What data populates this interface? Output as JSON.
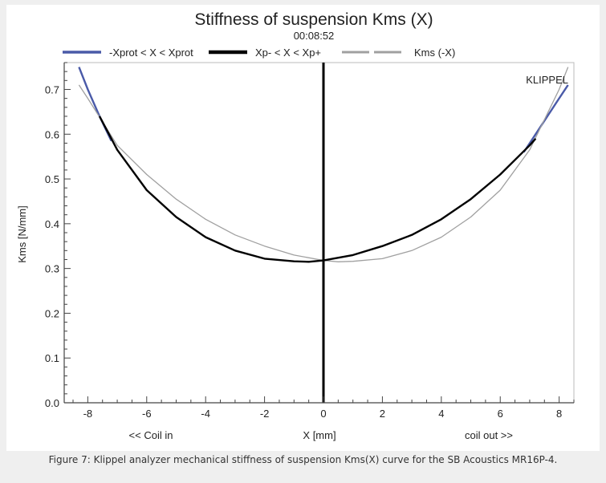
{
  "caption": "Figure 7: Klippel analyzer mechanical stiffness of suspension Kms(X) curve for the SB Acoustics MR16P-4.",
  "colors": {
    "background": "#efefef",
    "panel": "#ffffff",
    "xprot": "#4a5aa8",
    "xp": "#000000",
    "mirror": "#a0a0a0",
    "axis": "#444444"
  },
  "chart_data": {
    "type": "line",
    "title": "Stiffness of suspension Kms (X)",
    "subtitle": "00:08:52",
    "watermark": "KLIPPEL",
    "xlabel": "X [mm]",
    "ylabel": "Kms [N/mm]",
    "x_side_labels": {
      "left": "<< Coil in",
      "right": "coil out >>"
    },
    "xlim": [
      -8.8,
      8.5
    ],
    "ylim": [
      0,
      0.76
    ],
    "xticks": [
      -8,
      -6,
      -4,
      -2,
      0,
      2,
      4,
      6,
      8
    ],
    "yticks": [
      0.0,
      0.1,
      0.2,
      0.3,
      0.4,
      0.5,
      0.6,
      0.7
    ],
    "ytick_labels": [
      "0.0",
      "0.1",
      "0.2",
      "0.3",
      "0.4",
      "0.5",
      "0.6",
      "0.7"
    ],
    "grid": false,
    "legend_position": "top",
    "vertical_line_x": 0,
    "series": [
      {
        "name": "-Xprot < X < Xprot",
        "color": "#4a5aa8",
        "x": [
          -8.3,
          -8.0,
          -7.6,
          -7.2,
          6.8,
          7.2,
          7.6,
          8.0,
          8.3
        ],
        "y": [
          0.75,
          0.7,
          0.64,
          0.585,
          0.56,
          0.6,
          0.64,
          0.68,
          0.71
        ]
      },
      {
        "name": "Xp- < X < Xp+",
        "color": "#000000",
        "x": [
          -7.6,
          -7.0,
          -6.0,
          -5.0,
          -4.0,
          -3.0,
          -2.0,
          -1.0,
          -0.5,
          0.0,
          1.0,
          2.0,
          3.0,
          4.0,
          5.0,
          6.0,
          7.0,
          7.2
        ],
        "y": [
          0.64,
          0.565,
          0.475,
          0.415,
          0.37,
          0.34,
          0.322,
          0.316,
          0.315,
          0.318,
          0.33,
          0.35,
          0.375,
          0.41,
          0.455,
          0.51,
          0.575,
          0.59
        ],
        "bold_through_x0": true
      },
      {
        "name": "Kms (-X)",
        "color": "#a0a0a0",
        "x": [
          -8.3,
          -8.0,
          -7.0,
          -6.0,
          -5.0,
          -4.0,
          -3.0,
          -2.0,
          -1.0,
          0.0,
          0.5,
          1.0,
          2.0,
          3.0,
          4.0,
          5.0,
          6.0,
          7.0,
          8.0,
          8.3
        ],
        "y": [
          0.71,
          0.68,
          0.575,
          0.51,
          0.455,
          0.41,
          0.375,
          0.35,
          0.33,
          0.318,
          0.315,
          0.316,
          0.322,
          0.34,
          0.37,
          0.415,
          0.475,
          0.565,
          0.7,
          0.75
        ]
      }
    ]
  }
}
